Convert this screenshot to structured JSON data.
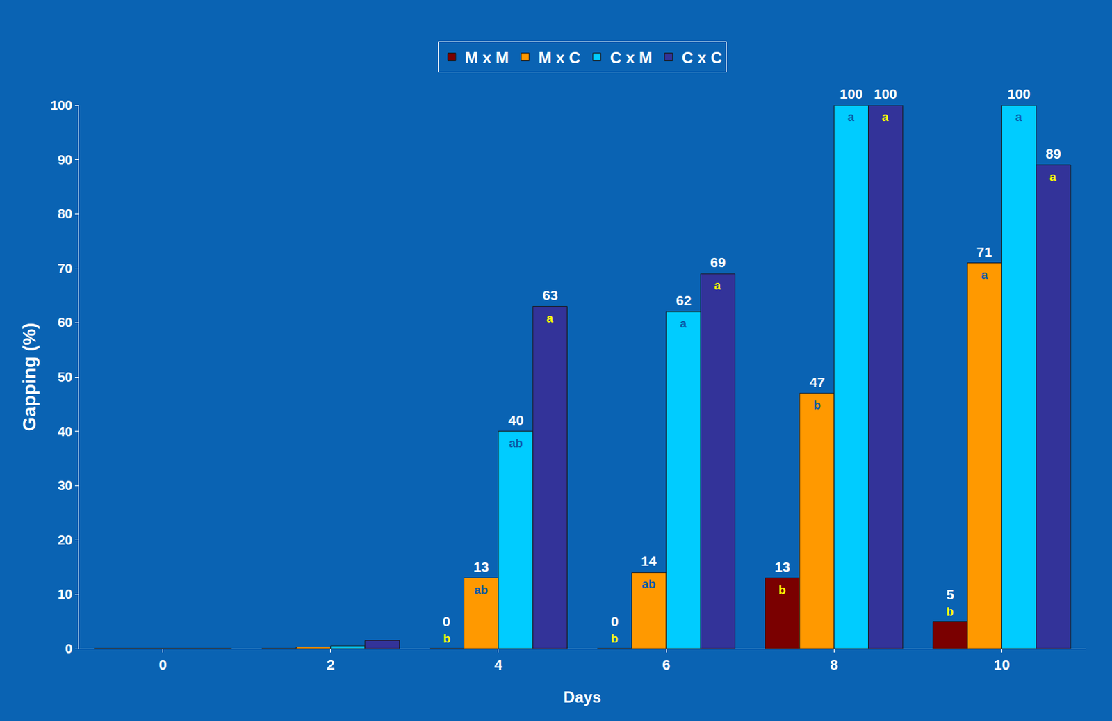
{
  "chart_data": {
    "type": "bar",
    "x_label": "Days",
    "y_label": "Gapping (%)",
    "categories": [
      "0",
      "2",
      "4",
      "6",
      "8",
      "10"
    ],
    "series": [
      {
        "name": "M x M",
        "color": "#7a0000",
        "values": [
          0,
          0,
          0,
          0,
          13,
          5
        ],
        "value_labels": [
          null,
          null,
          "0",
          "0",
          "13",
          "5"
        ],
        "letters": [
          null,
          null,
          "b",
          "b",
          "b",
          "b"
        ]
      },
      {
        "name": "M x C",
        "color": "#ff9900",
        "values": [
          0,
          0.3,
          13,
          14,
          47,
          71
        ],
        "value_labels": [
          null,
          null,
          "13",
          "14",
          "47",
          "71"
        ],
        "letters": [
          null,
          null,
          "ab",
          "ab",
          "b",
          "a"
        ]
      },
      {
        "name": "C x M",
        "color": "#00ccff",
        "values": [
          0,
          0.5,
          40,
          62,
          100,
          100
        ],
        "value_labels": [
          null,
          null,
          "40",
          "62",
          "100",
          "100"
        ],
        "letters": [
          null,
          null,
          "ab",
          "a",
          "a",
          "a"
        ]
      },
      {
        "name": "C x C",
        "color": "#333399",
        "values": [
          0,
          1.5,
          63,
          69,
          100,
          89
        ],
        "value_labels": [
          null,
          null,
          "63",
          "69",
          "100",
          "89"
        ],
        "letters": [
          null,
          null,
          "a",
          "a",
          "a",
          "a"
        ]
      }
    ],
    "ylim": [
      0,
      100
    ],
    "yticks": [
      0,
      10,
      20,
      30,
      40,
      50,
      60,
      70,
      80,
      90,
      100
    ],
    "grid": false,
    "legend": "top",
    "data_labels": true
  }
}
